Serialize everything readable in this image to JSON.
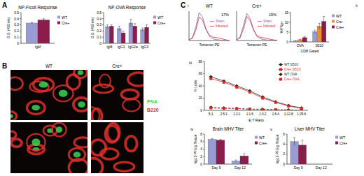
{
  "figure": {
    "panels": [
      "A",
      "B",
      "C"
    ],
    "subpanels": [
      "i",
      "ii",
      "iii",
      "iv",
      "v"
    ],
    "micrographs": {
      "columns": [
        "WT",
        "Cre+"
      ],
      "stains": [
        {
          "label": "PNA",
          "color": "#39d353"
        },
        {
          "label": "B220",
          "color": "#e8312a"
        }
      ]
    }
  },
  "chart_data": [
    {
      "type": "bar",
      "title": "NP-Ficoll Response",
      "y_label": "O.D. (450 nm)",
      "categories": [
        "IgM"
      ],
      "series": [
        {
          "name": "WT",
          "color": "#9b9bd3",
          "values": [
            0.33
          ],
          "errors": [
            0.01
          ]
        },
        {
          "name": "Cre+",
          "color": "#8b1c4c",
          "values": [
            0.38
          ],
          "errors": [
            0.02
          ]
        }
      ],
      "ylim": [
        0,
        0.5
      ],
      "yticks": [
        0,
        0.1,
        0.2,
        0.3,
        0.4,
        0.5
      ],
      "legend": "right"
    },
    {
      "type": "bar",
      "title": "NP-OVA Response",
      "y_label": "O.D. (450 nm)",
      "categories": [
        "IgM",
        "IgG1",
        "IgG2a",
        "IgG3"
      ],
      "series": [
        {
          "name": "WT",
          "color": "#9b9bd3",
          "values": [
            0.27,
            0.24,
            0.33,
            0.22
          ],
          "errors": [
            0.03,
            0.04,
            0.06,
            0.03
          ]
        },
        {
          "name": "Cre+",
          "color": "#8b1c4c",
          "values": [
            0.28,
            0.17,
            0.28,
            0.26
          ],
          "errors": [
            0.02,
            0.03,
            0.04,
            0.04
          ]
        }
      ],
      "ylim": [
        0,
        0.5
      ],
      "yticks": [
        0,
        0.1,
        0.2,
        0.3,
        0.4,
        0.5
      ],
      "legend": "right"
    },
    {
      "type": "line",
      "title": "WT",
      "x_label": "Tetramer-PE",
      "x": [
        0,
        1,
        2,
        3,
        4,
        5,
        6,
        7,
        8,
        9,
        10,
        11,
        12
      ],
      "series": [
        {
          "name": "Sham",
          "color": "#8a5cc0",
          "line_style": "solid",
          "marker": "none",
          "values": [
            2,
            10,
            45,
            95,
            80,
            40,
            15,
            6,
            3,
            2,
            1,
            1,
            0
          ]
        },
        {
          "name": "Infected",
          "color": "#d7262b",
          "line_style": "solid",
          "marker": "none",
          "values": [
            2,
            8,
            35,
            80,
            70,
            38,
            18,
            12,
            10,
            8,
            5,
            2,
            0
          ]
        }
      ],
      "xlim": [
        0,
        12
      ],
      "ylim": [
        0,
        100
      ],
      "xticks": [],
      "yticks": [],
      "tick_labels": false,
      "annotations": [
        "17%"
      ],
      "legend": "right"
    },
    {
      "type": "line",
      "title": "Cre+",
      "x_label": "Tetramer-PE",
      "x": [
        0,
        1,
        2,
        3,
        4,
        5,
        6,
        7,
        8,
        9,
        10,
        11,
        12
      ],
      "series": [
        {
          "name": "Sham",
          "color": "#8a5cc0",
          "line_style": "solid",
          "marker": "none",
          "values": [
            2,
            12,
            50,
            92,
            75,
            38,
            14,
            6,
            3,
            2,
            1,
            1,
            0
          ]
        },
        {
          "name": "Infected",
          "color": "#d7262b",
          "line_style": "solid",
          "marker": "none",
          "values": [
            2,
            9,
            38,
            82,
            68,
            36,
            17,
            11,
            9,
            7,
            4,
            2,
            0
          ]
        }
      ],
      "xlim": [
        0,
        12
      ],
      "ylim": [
        0,
        100
      ],
      "xticks": [],
      "yticks": [],
      "tick_labels": false,
      "annotations": [
        "15%"
      ],
      "legend": "right"
    },
    {
      "type": "bar",
      "y_label": "%IFNg+",
      "x_label": "CD8 Gated",
      "categories": [
        "OVA",
        "S510"
      ],
      "series": [
        {
          "name": "WT",
          "color": "#9b9bd3",
          "values": [
            0.5,
            5.2
          ],
          "errors": [
            0.2,
            0.8
          ]
        },
        {
          "name": "Cre-",
          "color": "#e8912d",
          "values": [
            1.1,
            8
          ],
          "errors": [
            0.3,
            1.5
          ]
        },
        {
          "name": "Cre+",
          "color": "#8b1c4c",
          "values": [
            2.2,
            10.5
          ],
          "errors": [
            0.5,
            2.5
          ]
        }
      ],
      "ylim": [
        0,
        15
      ],
      "yticks": [
        0,
        5,
        10,
        15
      ],
      "legend": "right"
    },
    {
      "type": "line",
      "y_label": "% Lysis",
      "x_label": "E:T Ratio",
      "categories": [
        "5:1",
        "2.5:1",
        "1.2:1",
        "1:1.6",
        "1:3.2",
        "1:6.4",
        "1:12.8",
        "1:25.6"
      ],
      "series": [
        {
          "name": "WT S510",
          "color": "#222222",
          "line_style": "solid",
          "marker": "diamond",
          "values": [
            55,
            48,
            40,
            32,
            22,
            14,
            8,
            4
          ]
        },
        {
          "name": "Cre+ S510",
          "color": "#d62728",
          "line_style": "solid",
          "marker": "square",
          "values": [
            52,
            46,
            38,
            30,
            20,
            13,
            7,
            3
          ]
        },
        {
          "name": "WT OVA",
          "color": "#222222",
          "line_style": "dashed",
          "marker": "diamond",
          "values": [
            5,
            4,
            3,
            2,
            2,
            1,
            1,
            0
          ]
        },
        {
          "name": "Cre+ OVA",
          "color": "#d62728",
          "line_style": "dashed",
          "marker": "square",
          "values": [
            4,
            3,
            3,
            2,
            1,
            1,
            0,
            0
          ]
        }
      ],
      "ylim": [
        0,
        80
      ],
      "yticks": [
        0,
        20,
        40,
        60,
        80
      ],
      "legend": "upper right"
    },
    {
      "type": "bar",
      "title": "Brain MHV Titer",
      "y_label": "log10 PFU/g Tissue",
      "categories": [
        "Day 5",
        "Day 12"
      ],
      "series": [
        {
          "name": "WT",
          "color": "#9b9bd3",
          "values": [
            6.6,
            0.8
          ],
          "errors": [
            0.2,
            0.3
          ]
        },
        {
          "name": "Cre+",
          "color": "#8b1c4c",
          "values": [
            6.4,
            2.2
          ],
          "errors": [
            0.2,
            0.6
          ]
        }
      ],
      "ylim": [
        0,
        8
      ],
      "yticks": [
        0,
        2,
        4,
        6,
        8
      ],
      "legend": "right"
    },
    {
      "type": "bar",
      "title": "Liver MHV Titer",
      "y_label": "log10 PFU/g Tissue",
      "categories": [
        "Day 5",
        "Day 12"
      ],
      "series": [
        {
          "name": "WT",
          "color": "#9b9bd3",
          "values": [
            4.5,
            null
          ],
          "errors": [
            0.8,
            null
          ]
        },
        {
          "name": "Cre+",
          "color": "#8b1c4c",
          "values": [
            3.8,
            null
          ],
          "errors": [
            1.0,
            null
          ]
        }
      ],
      "ylim": [
        0,
        6
      ],
      "yticks": [
        0,
        2,
        4,
        6
      ],
      "legend": "right"
    }
  ]
}
